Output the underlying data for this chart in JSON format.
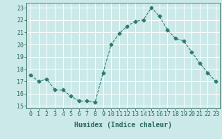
{
  "x": [
    0,
    1,
    2,
    3,
    4,
    5,
    6,
    7,
    8,
    9,
    10,
    11,
    12,
    13,
    14,
    15,
    16,
    17,
    18,
    19,
    20,
    21,
    22,
    23
  ],
  "y": [
    17.5,
    17.0,
    17.2,
    16.3,
    16.3,
    15.8,
    15.4,
    15.4,
    15.3,
    17.7,
    20.0,
    20.9,
    21.5,
    21.9,
    22.0,
    23.0,
    22.3,
    21.2,
    20.5,
    20.3,
    19.4,
    18.5,
    17.7,
    17.0
  ],
  "line_color": "#2d7a6e",
  "marker": "D",
  "marker_size": 2.5,
  "bg_color": "#cce9e9",
  "grid_color": "#ffffff",
  "xlabel": "Humidex (Indice chaleur)",
  "ylim": [
    14.8,
    23.4
  ],
  "xlim": [
    -0.5,
    23.5
  ],
  "yticks": [
    15,
    16,
    17,
    18,
    19,
    20,
    21,
    22,
    23
  ],
  "xticks": [
    0,
    1,
    2,
    3,
    4,
    5,
    6,
    7,
    8,
    9,
    10,
    11,
    12,
    13,
    14,
    15,
    16,
    17,
    18,
    19,
    20,
    21,
    22,
    23
  ],
  "line_color_dark": "#2d6a5e",
  "font_size_axis": 6,
  "font_size_label": 7
}
